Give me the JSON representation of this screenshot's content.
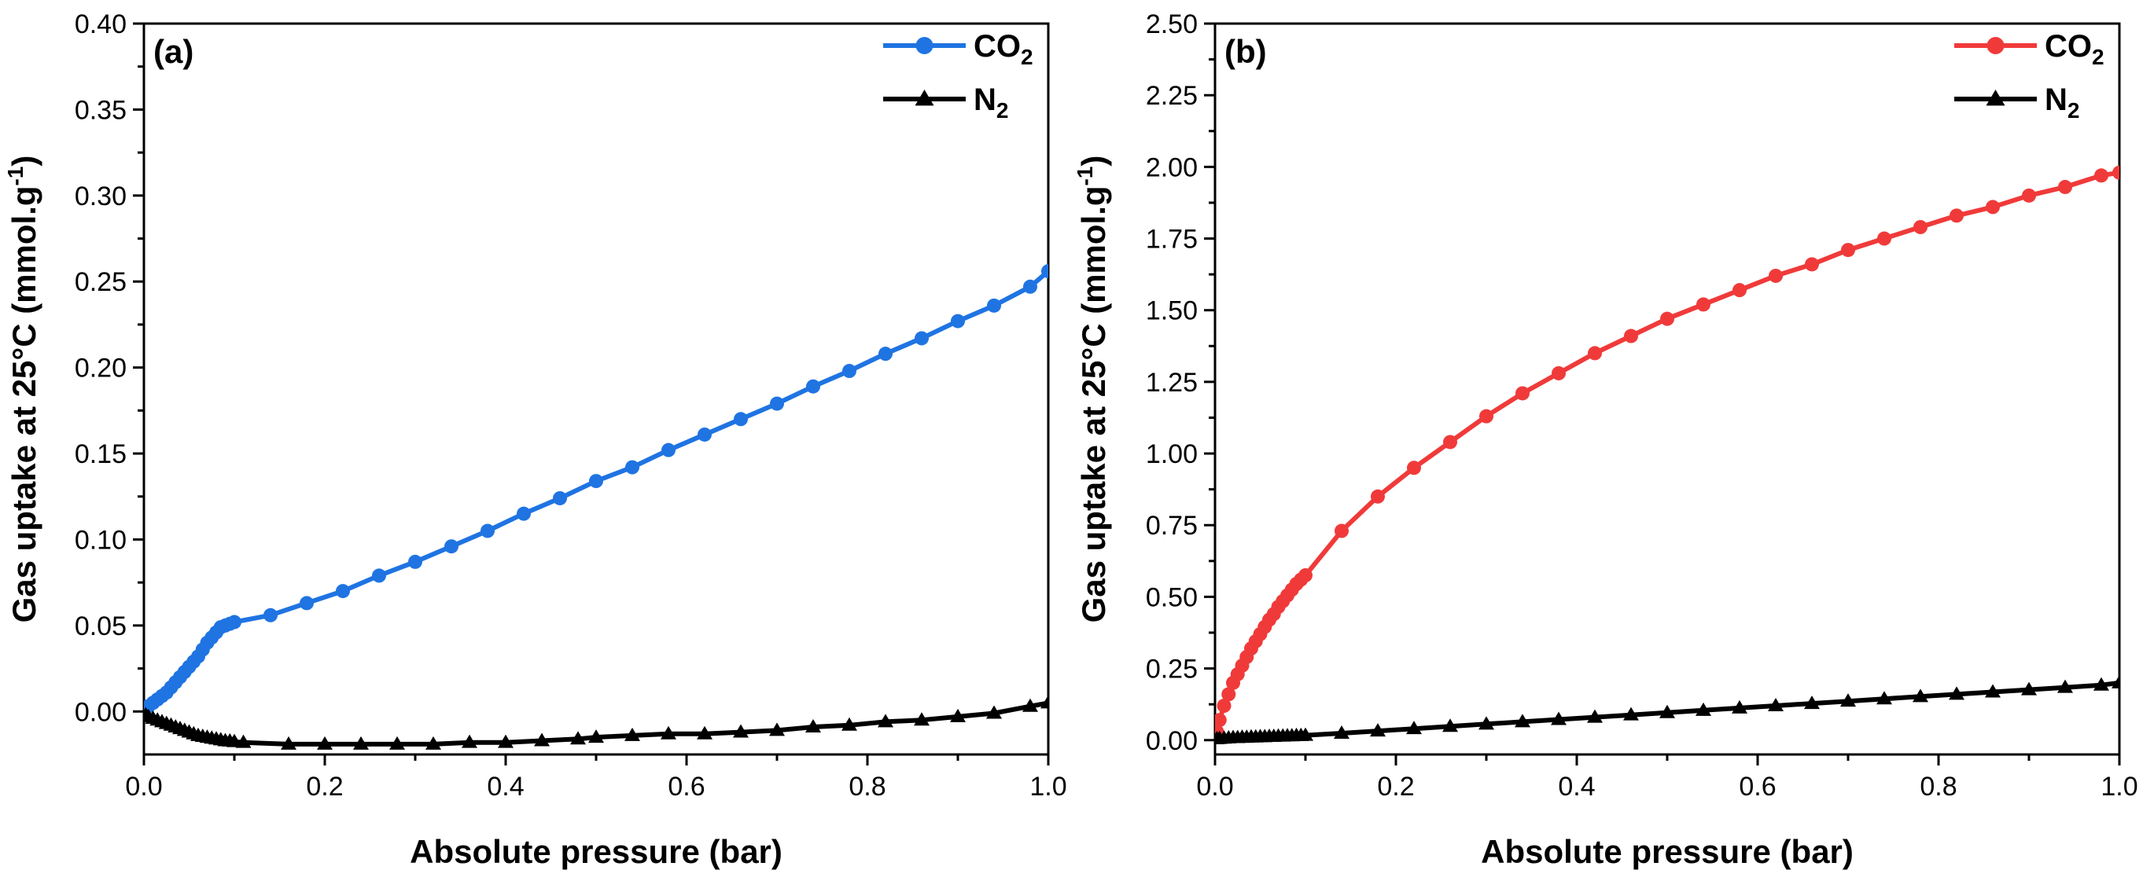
{
  "chart_data": [
    {
      "type": "line",
      "panel_label": "(a)",
      "xlabel": "Absolute pressure (bar)",
      "ylabel": {
        "main": "Gas uptake at 25°C (mmol.g",
        "sup": "-1",
        "close": ")"
      },
      "xlim": [
        0,
        1.0
      ],
      "ylim": [
        -0.025,
        0.4
      ],
      "xticks": [
        "0.0",
        "0.2",
        "0.4",
        "0.6",
        "0.8",
        "1.0"
      ],
      "yticks": [
        "0.00",
        "0.05",
        "0.10",
        "0.15",
        "0.20",
        "0.25",
        "0.30",
        "0.35",
        "0.40"
      ],
      "legend_position": "top-right",
      "series": [
        {
          "name": "CO",
          "name_sub": "2",
          "color": "#1f74e2",
          "marker": "circle",
          "x": [
            0.002,
            0.005,
            0.01,
            0.015,
            0.02,
            0.025,
            0.03,
            0.035,
            0.04,
            0.045,
            0.05,
            0.055,
            0.06,
            0.065,
            0.07,
            0.075,
            0.08,
            0.085,
            0.09,
            0.095,
            0.1,
            0.14,
            0.18,
            0.22,
            0.26,
            0.3,
            0.34,
            0.38,
            0.42,
            0.46,
            0.5,
            0.54,
            0.58,
            0.62,
            0.66,
            0.7,
            0.74,
            0.78,
            0.82,
            0.86,
            0.9,
            0.94,
            0.98,
            1.0
          ],
          "y": [
            0.002,
            0.003,
            0.005,
            0.007,
            0.009,
            0.011,
            0.014,
            0.017,
            0.02,
            0.023,
            0.026,
            0.029,
            0.032,
            0.036,
            0.04,
            0.043,
            0.046,
            0.049,
            0.05,
            0.051,
            0.052,
            0.056,
            0.063,
            0.07,
            0.079,
            0.087,
            0.096,
            0.105,
            0.115,
            0.124,
            0.134,
            0.142,
            0.152,
            0.161,
            0.17,
            0.179,
            0.189,
            0.198,
            0.208,
            0.217,
            0.227,
            0.236,
            0.247,
            0.256
          ]
        },
        {
          "name": "N",
          "name_sub": "2",
          "color": "#000000",
          "marker": "triangle",
          "x": [
            0.002,
            0.005,
            0.01,
            0.015,
            0.02,
            0.025,
            0.03,
            0.035,
            0.04,
            0.045,
            0.05,
            0.055,
            0.06,
            0.065,
            0.07,
            0.075,
            0.08,
            0.085,
            0.09,
            0.095,
            0.1,
            0.11,
            0.16,
            0.2,
            0.24,
            0.28,
            0.32,
            0.36,
            0.4,
            0.44,
            0.48,
            0.5,
            0.54,
            0.58,
            0.62,
            0.66,
            0.7,
            0.74,
            0.78,
            0.82,
            0.86,
            0.9,
            0.94,
            0.98,
            1.0
          ],
          "y": [
            -0.002,
            -0.003,
            -0.004,
            -0.005,
            -0.006,
            -0.007,
            -0.008,
            -0.009,
            -0.01,
            -0.011,
            -0.012,
            -0.013,
            -0.014,
            -0.0145,
            -0.015,
            -0.0155,
            -0.016,
            -0.0165,
            -0.017,
            -0.0172,
            -0.0175,
            -0.018,
            -0.019,
            -0.019,
            -0.019,
            -0.019,
            -0.019,
            -0.018,
            -0.018,
            -0.017,
            -0.016,
            -0.015,
            -0.014,
            -0.013,
            -0.013,
            -0.012,
            -0.011,
            -0.009,
            -0.008,
            -0.006,
            -0.005,
            -0.003,
            -0.001,
            0.003,
            0.005
          ]
        }
      ]
    },
    {
      "type": "line",
      "panel_label": "(b)",
      "xlabel": "Absolute pressure (bar)",
      "ylabel": {
        "main": "Gas uptake at 25°C (mmol.g",
        "sup": "-1",
        "close": ")"
      },
      "xlim": [
        0,
        1.0
      ],
      "ylim": [
        -0.05,
        2.5
      ],
      "xticks": [
        "0.0",
        "0.2",
        "0.4",
        "0.6",
        "0.8",
        "1.0"
      ],
      "yticks": [
        "0.00",
        "0.25",
        "0.50",
        "0.75",
        "1.00",
        "1.25",
        "1.50",
        "1.75",
        "2.00",
        "2.25",
        "2.50"
      ],
      "legend_position": "top-right",
      "series": [
        {
          "name": "CO",
          "name_sub": "2",
          "color": "#f03a3a",
          "marker": "circle",
          "x": [
            0.002,
            0.005,
            0.01,
            0.015,
            0.02,
            0.025,
            0.03,
            0.035,
            0.04,
            0.045,
            0.05,
            0.055,
            0.06,
            0.065,
            0.07,
            0.075,
            0.08,
            0.085,
            0.09,
            0.095,
            0.1,
            0.14,
            0.18,
            0.22,
            0.26,
            0.3,
            0.34,
            0.38,
            0.42,
            0.46,
            0.5,
            0.54,
            0.58,
            0.62,
            0.66,
            0.7,
            0.74,
            0.78,
            0.82,
            0.86,
            0.9,
            0.94,
            0.98,
            1.0
          ],
          "y": [
            0.03,
            0.07,
            0.12,
            0.16,
            0.2,
            0.23,
            0.26,
            0.29,
            0.32,
            0.345,
            0.37,
            0.395,
            0.42,
            0.44,
            0.465,
            0.485,
            0.505,
            0.525,
            0.545,
            0.56,
            0.575,
            0.73,
            0.85,
            0.95,
            1.04,
            1.13,
            1.21,
            1.28,
            1.35,
            1.41,
            1.47,
            1.52,
            1.57,
            1.62,
            1.66,
            1.71,
            1.75,
            1.79,
            1.83,
            1.86,
            1.9,
            1.93,
            1.97,
            1.98
          ]
        },
        {
          "name": "N",
          "name_sub": "2",
          "color": "#000000",
          "marker": "triangle",
          "x": [
            0.002,
            0.005,
            0.01,
            0.015,
            0.02,
            0.025,
            0.03,
            0.035,
            0.04,
            0.045,
            0.05,
            0.055,
            0.06,
            0.065,
            0.07,
            0.075,
            0.08,
            0.085,
            0.09,
            0.095,
            0.1,
            0.14,
            0.18,
            0.22,
            0.26,
            0.3,
            0.34,
            0.38,
            0.42,
            0.46,
            0.5,
            0.54,
            0.58,
            0.62,
            0.66,
            0.7,
            0.74,
            0.78,
            0.82,
            0.86,
            0.9,
            0.94,
            0.98,
            1.0
          ],
          "y": [
            0.005,
            0.006,
            0.007,
            0.008,
            0.009,
            0.009,
            0.01,
            0.01,
            0.011,
            0.011,
            0.012,
            0.012,
            0.013,
            0.013,
            0.014,
            0.014,
            0.015,
            0.015,
            0.016,
            0.016,
            0.017,
            0.024,
            0.032,
            0.04,
            0.048,
            0.056,
            0.064,
            0.072,
            0.08,
            0.088,
            0.096,
            0.104,
            0.112,
            0.12,
            0.128,
            0.136,
            0.144,
            0.152,
            0.16,
            0.168,
            0.176,
            0.184,
            0.192,
            0.2
          ]
        }
      ]
    }
  ]
}
